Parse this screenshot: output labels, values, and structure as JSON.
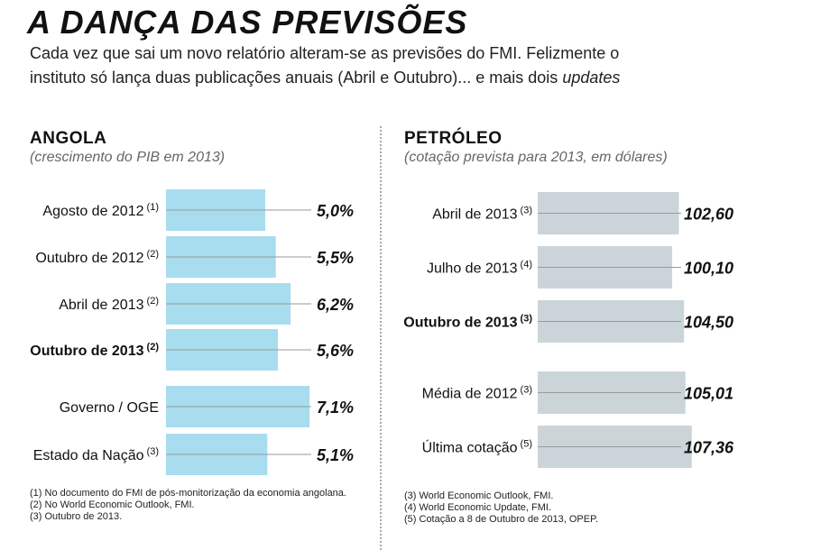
{
  "header": {
    "title": "A DANÇA DAS PREVISÕES",
    "subtitle_main": "Cada vez que sai um novo relatório alteram-se as previsões do FMI. Felizmente o instituto só lança duas publicações anuais (Abril e Outubro)... e mais dois ",
    "subtitle_em": "updates"
  },
  "angola": {
    "title": "ANGOLA",
    "subtitle": "(crescimento do PIB em 2013)",
    "footnotes": [
      "(1) No documento do FMI de pós-monitorização da economia angolana.",
      "(2) No World Economic Outlook, FMI.",
      "(3) Outubro de 2013."
    ]
  },
  "petroleo": {
    "title": "PETRÓLEO",
    "subtitle": "(cotação prevista para 2013, em dólares)",
    "footnotes": [
      "(3) World Economic Outlook, FMI.",
      "(4) World Economic Update, FMI.",
      "(5) Cotação a 8 de Outubro de 2013, OPEP."
    ]
  },
  "colors": {
    "angola_bar": "#a8dcef",
    "petroleo_bar": "#cbd5d9",
    "highlight": "#1e88c5",
    "leader": "#9a9a9a"
  },
  "chart_data": [
    {
      "type": "bar",
      "orientation": "horizontal",
      "categories": [
        "Agosto de 2012",
        "Outubro de 2012",
        "Abril de 2013",
        "Outubro de 2013",
        "Governo / OGE",
        "Estado da Nação"
      ],
      "notes": [
        "1",
        "2",
        "2",
        "2",
        "",
        "3"
      ],
      "values": [
        5.0,
        5.5,
        6.2,
        5.6,
        7.1,
        5.1
      ],
      "labels": [
        "5,0%",
        "5,5%",
        "6,2%",
        "5,6%",
        "7,1%",
        "5,1%"
      ],
      "highlight_index": 3
    },
    {
      "type": "bar",
      "orientation": "horizontal",
      "categories": [
        "Abril de 2013",
        "Julho de 2013",
        "Outubro de 2013",
        "Média de 2012",
        "Última cotação"
      ],
      "notes": [
        "3",
        "4",
        "3",
        "3",
        "5"
      ],
      "values": [
        102.6,
        100.1,
        104.5,
        105.01,
        107.36
      ],
      "labels": [
        "102,60",
        "100,10",
        "104,50",
        "105,01",
        "107,36"
      ],
      "highlight_index": 2
    }
  ]
}
